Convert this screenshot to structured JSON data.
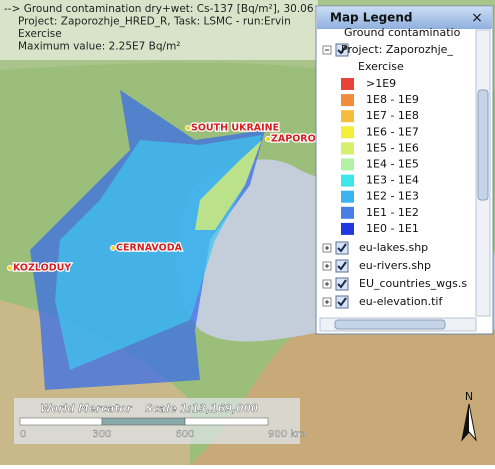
{
  "header": {
    "lines": [
      "--> Ground contamination dry+wet: Cs-137 [Bq/m²], 30.06",
      "Project: Zaporozhje_HRED_R, Task: LSMC - run:Ervin",
      "Exercise",
      "Maximum value: 2.25E7 Bq/m²"
    ]
  },
  "places": [
    {
      "label": "SOUTH UKRAINE"
    },
    {
      "label": "ZAPOROZ"
    },
    {
      "label": "CERNAVODA"
    },
    {
      "label": "KOZLODUY"
    }
  ],
  "legend": {
    "title": "Map Legend",
    "close": "×",
    "layer_title": "Ground contaminatio",
    "project": "Project: Zaporozhje_",
    "task": "Exercise",
    "classes": [
      {
        "label": ">1E9",
        "color": "#e8433a"
      },
      {
        "label": "1E8 - 1E9",
        "color": "#f08c3c"
      },
      {
        "label": "1E7 - 1E8",
        "color": "#f6bc3c"
      },
      {
        "label": "1E6 - 1E7",
        "color": "#f5ee38"
      },
      {
        "label": "1E5 - 1E6",
        "color": "#d6f06c"
      },
      {
        "label": "1E4 - 1E5",
        "color": "#b2f0a6"
      },
      {
        "label": "1E3 - 1E4",
        "color": "#3ee6ea"
      },
      {
        "label": "1E2 - 1E3",
        "color": "#3cb4f0"
      },
      {
        "label": "1E1 - 1E2",
        "color": "#4a7ee6"
      },
      {
        "label": "1E0 - 1E1",
        "color": "#2038e0"
      }
    ],
    "layers": [
      "eu-lakes.shp",
      "eu-rivers.shp",
      "EU_countries_wgs.s",
      "eu-elevation.tif"
    ]
  },
  "scale": {
    "projection": "World Mercator",
    "ratio": "Scale 1:13,169,000",
    "ticks": [
      "0",
      "300",
      "600",
      "900 km"
    ]
  },
  "compass": "N"
}
